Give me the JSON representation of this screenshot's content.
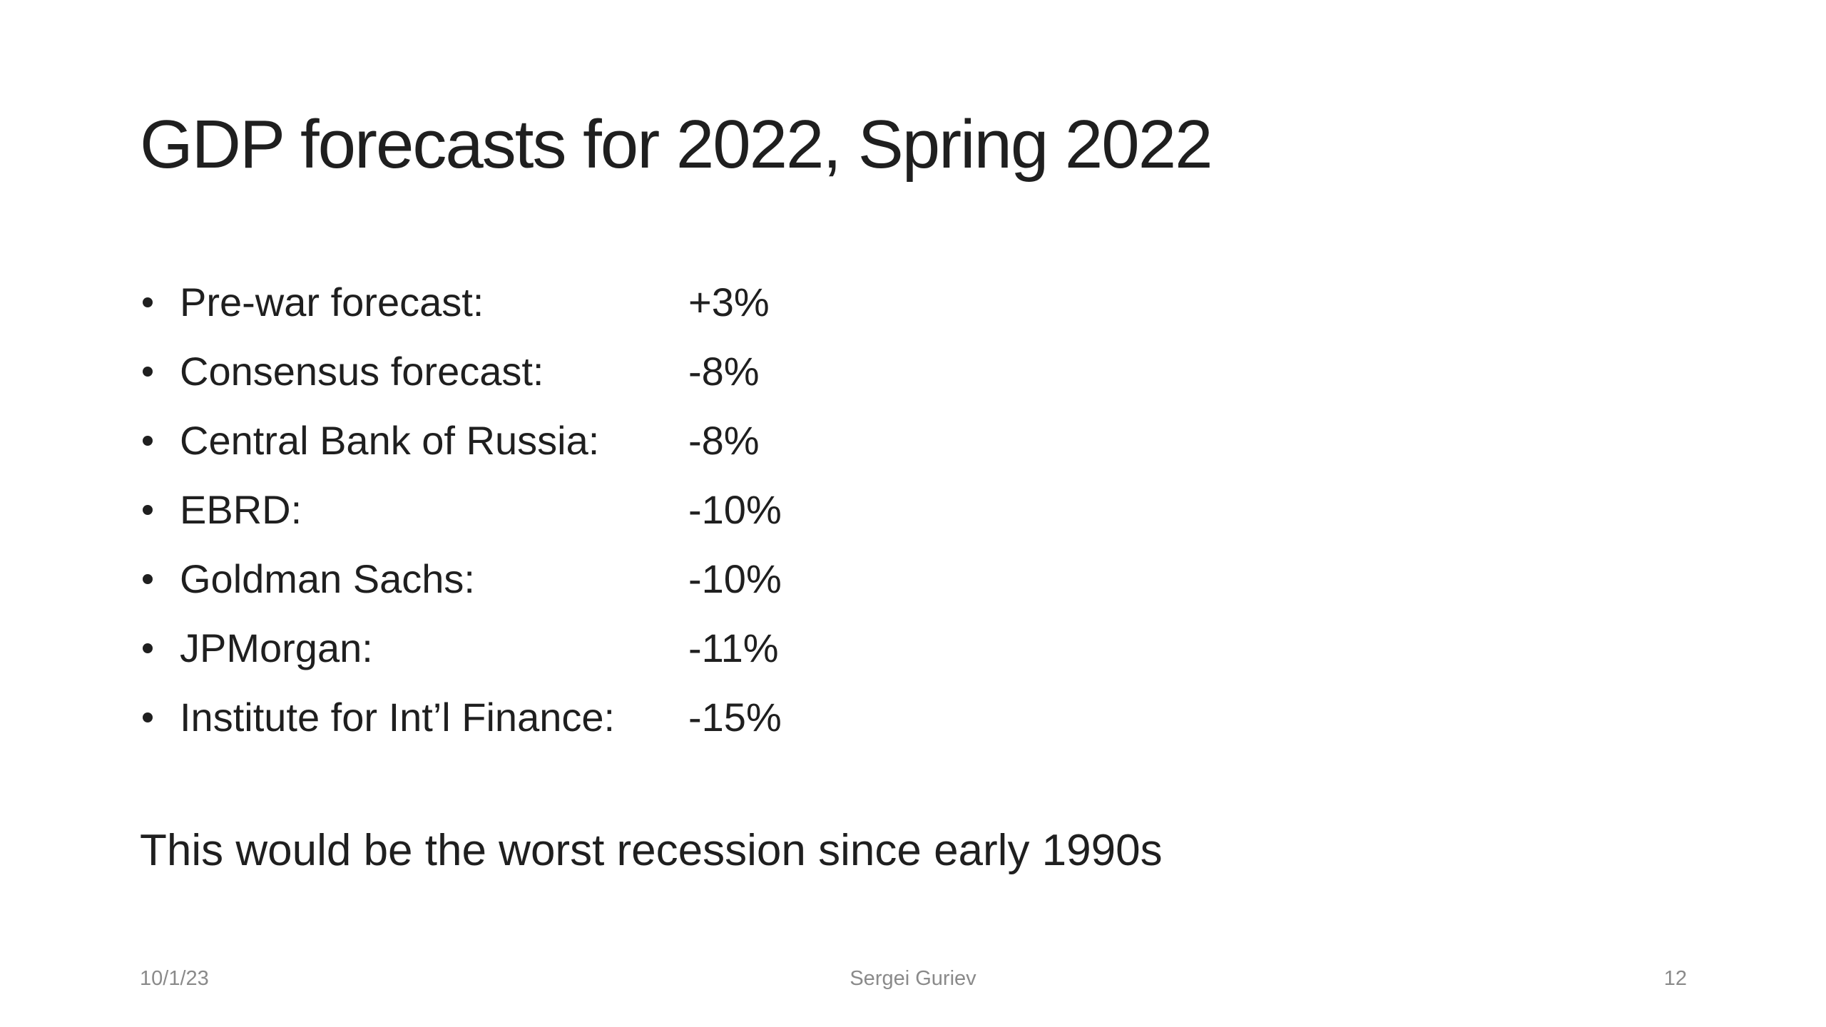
{
  "slide": {
    "title": "GDP forecasts for 2022, Spring 2022",
    "bullets": [
      {
        "label": "Pre-war forecast:",
        "value": "+3%"
      },
      {
        "label": "Consensus forecast:",
        "value": "-8%"
      },
      {
        "label": "Central Bank of Russia:",
        "value": "-8%"
      },
      {
        "label": "EBRD:",
        "value": "-10%"
      },
      {
        "label": "Goldman Sachs:",
        "value": "-10%"
      },
      {
        "label": "JPMorgan:",
        "value": "-11%"
      },
      {
        "label": "Institute for Int’l Finance:",
        "value": "-15%"
      }
    ],
    "conclusion": "This would be the worst recession since early 1990s",
    "footer": {
      "date": "10/1/23",
      "author": "Sergei Guriev",
      "page": "12"
    },
    "colors": {
      "text": "#1f1f1f",
      "footer_text": "#8a8a8a",
      "background": "#ffffff"
    }
  }
}
